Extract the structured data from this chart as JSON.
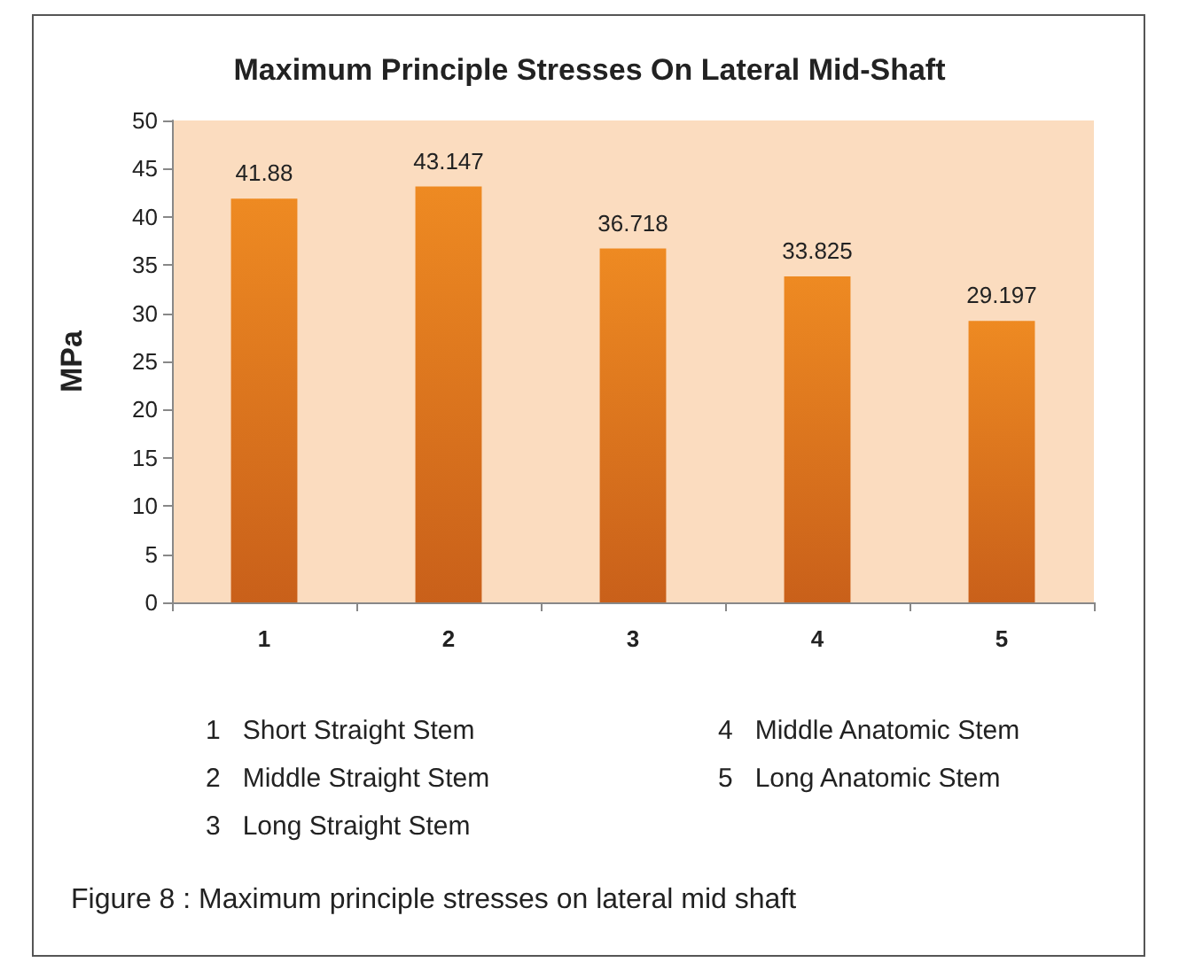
{
  "chart_data": {
    "type": "bar",
    "title": "Maximum Principle Stresses On Lateral Mid-Shaft",
    "ylabel": "MPa",
    "categories": [
      "1",
      "2",
      "3",
      "4",
      "5"
    ],
    "values": [
      41.88,
      43.147,
      36.718,
      33.825,
      29.197
    ],
    "color": "#ee8a22",
    "ylim": [
      0,
      50
    ],
    "yticks": [
      0,
      5,
      10,
      15,
      20,
      25,
      30,
      35,
      40,
      45,
      50
    ],
    "grid": false,
    "data_labels": true,
    "annotations": [
      "1   Short Straight Stem",
      "2   Middle Straight Stem",
      "3   Long Straight Stem",
      "4   Middle Anatomic Stem",
      "5   Long Anatomic Stem",
      "Figure 8 : Maximum principle stresses on lateral mid shaft"
    ]
  }
}
